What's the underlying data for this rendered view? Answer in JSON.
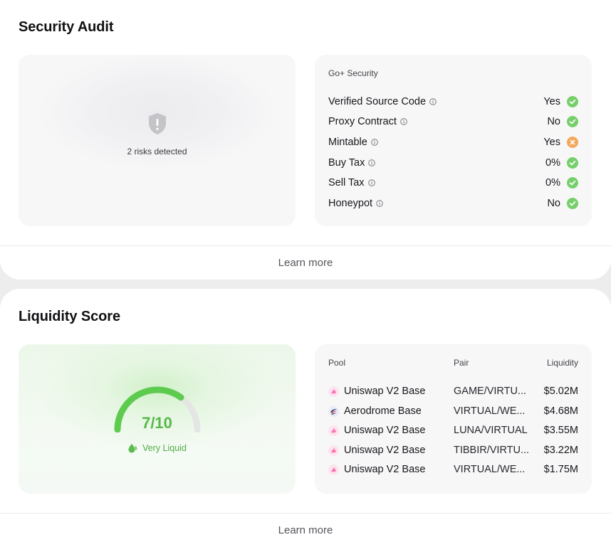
{
  "security": {
    "title": "Security Audit",
    "risk_text": "2 risks detected",
    "provider": "Go+ Security",
    "learn_more": "Learn more",
    "checks": [
      {
        "name": "Verified Source Code",
        "value": "Yes",
        "status": "ok"
      },
      {
        "name": "Proxy Contract",
        "value": "No",
        "status": "ok"
      },
      {
        "name": "Mintable",
        "value": "Yes",
        "status": "warn"
      },
      {
        "name": "Buy Tax",
        "value": "0%",
        "status": "ok"
      },
      {
        "name": "Sell Tax",
        "value": "0%",
        "status": "ok"
      },
      {
        "name": "Honeypot",
        "value": "No",
        "status": "ok"
      }
    ],
    "icons": {
      "shield": "shield-warning-icon",
      "info": "info-icon",
      "ok": "check-circle-icon",
      "warn": "x-circle-icon"
    },
    "colors": {
      "ok": "#77cf6c",
      "warn": "#f2a95c",
      "shield": "#c4c4c8"
    }
  },
  "liquidity": {
    "title": "Liquidity Score",
    "score": "7/10",
    "score_value": 7,
    "score_max": 10,
    "score_label": "Very Liquid",
    "learn_more": "Learn more",
    "columns": {
      "pool": "Pool",
      "pair": "Pair",
      "liquidity": "Liquidity"
    },
    "pools": [
      {
        "dex": "Uniswap V2 Base",
        "pair": "GAME/VIRTU...",
        "liquidity": "$5.02M",
        "icon": "uniswap-icon"
      },
      {
        "dex": "Aerodrome Base",
        "pair": "VIRTUAL/WE...",
        "liquidity": "$4.68M",
        "icon": "aerodrome-icon"
      },
      {
        "dex": "Uniswap V2 Base",
        "pair": "LUNA/VIRTUAL",
        "liquidity": "$3.55M",
        "icon": "uniswap-icon"
      },
      {
        "dex": "Uniswap V2 Base",
        "pair": "TIBBIR/VIRTU...",
        "liquidity": "$3.22M",
        "icon": "uniswap-icon"
      },
      {
        "dex": "Uniswap V2 Base",
        "pair": "VIRTUAL/WE...",
        "liquidity": "$1.75M",
        "icon": "uniswap-icon"
      }
    ],
    "colors": {
      "gauge": "#5dcb4e",
      "gauge_track": "#e4e6e4",
      "score_text": "#58b84a"
    }
  }
}
